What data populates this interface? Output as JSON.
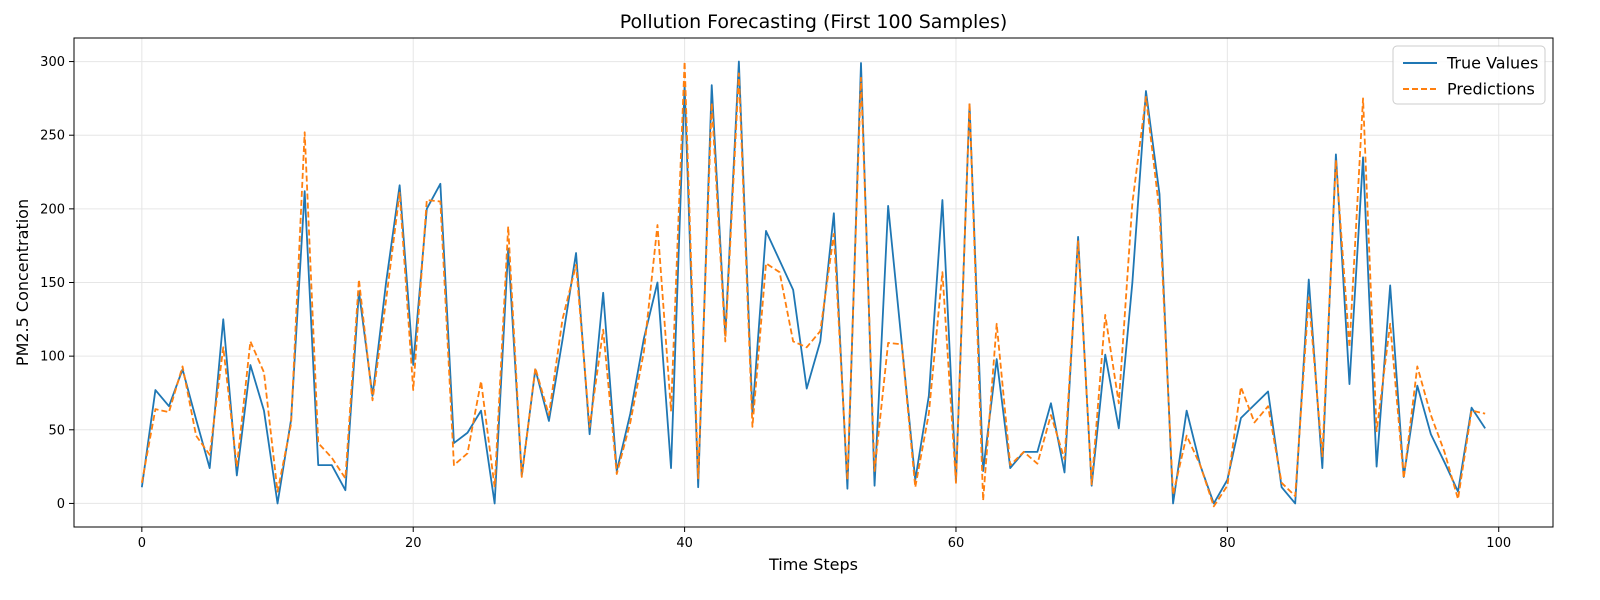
{
  "chart_data": {
    "type": "line",
    "title": "Pollution Forecasting (First 100 Samples)",
    "xlabel": "Time Steps",
    "ylabel": "PM2.5 Concentration",
    "xlim": [
      -5,
      104
    ],
    "ylim": [
      -16,
      316
    ],
    "xticks": [
      0,
      20,
      40,
      60,
      80,
      100
    ],
    "yticks": [
      0,
      50,
      100,
      150,
      200,
      250,
      300
    ],
    "grid": true,
    "legend_position": "top-right",
    "x": [
      0,
      1,
      2,
      3,
      4,
      5,
      6,
      7,
      8,
      9,
      10,
      11,
      12,
      13,
      14,
      15,
      16,
      17,
      18,
      19,
      20,
      21,
      22,
      23,
      24,
      25,
      26,
      27,
      28,
      29,
      30,
      31,
      32,
      33,
      34,
      35,
      36,
      37,
      38,
      39,
      40,
      41,
      42,
      43,
      44,
      45,
      46,
      47,
      48,
      49,
      50,
      51,
      52,
      53,
      54,
      55,
      56,
      57,
      58,
      59,
      60,
      61,
      62,
      63,
      64,
      65,
      66,
      67,
      68,
      69,
      70,
      71,
      72,
      73,
      74,
      75,
      76,
      77,
      78,
      79,
      80,
      81,
      82,
      83,
      84,
      85,
      86,
      87,
      88,
      89,
      90,
      91,
      92,
      93,
      94,
      95,
      96,
      97,
      98,
      99
    ],
    "series": [
      {
        "name": "True Values",
        "color": "#1f77b4",
        "style": "solid",
        "values": [
          11,
          77,
          66,
          91,
          57,
          24,
          125,
          19,
          94,
          63,
          0,
          57,
          212,
          26,
          26,
          9,
          144,
          73,
          150,
          216,
          94,
          200,
          217,
          41,
          48,
          63,
          0,
          173,
          19,
          91,
          56,
          111,
          170,
          47,
          143,
          22,
          61,
          112,
          150,
          24,
          284,
          11,
          284,
          114,
          300,
          61,
          185,
          165,
          145,
          78,
          110,
          197,
          10,
          299,
          12,
          202,
          109,
          16,
          73,
          206,
          15,
          271,
          22,
          98,
          24,
          35,
          35,
          68,
          21,
          181,
          12,
          101,
          51,
          150,
          280,
          210,
          0,
          63,
          26,
          0,
          16,
          58,
          67,
          76,
          11,
          0,
          152,
          24,
          237,
          81,
          235,
          25,
          148,
          18,
          80,
          47,
          28,
          8,
          65,
          51
        ]
      },
      {
        "name": "Predictions",
        "color": "#ff7f0e",
        "style": "dashed",
        "values": [
          14,
          64,
          62,
          93,
          46,
          33,
          106,
          25,
          110,
          89,
          8,
          54,
          252,
          41,
          31,
          17,
          152,
          70,
          138,
          211,
          77,
          206,
          205,
          26,
          34,
          83,
          11,
          188,
          18,
          92,
          60,
          125,
          162,
          52,
          118,
          20,
          55,
          103,
          189,
          63,
          300,
          17,
          272,
          110,
          292,
          52,
          163,
          157,
          110,
          106,
          117,
          183,
          16,
          289,
          22,
          109,
          108,
          11,
          61,
          157,
          14,
          272,
          2,
          122,
          26,
          35,
          27,
          60,
          30,
          178,
          13,
          128,
          68,
          204,
          276,
          198,
          6,
          46,
          26,
          -2,
          12,
          79,
          55,
          66,
          14,
          5,
          140,
          32,
          233,
          106,
          275,
          49,
          122,
          17,
          93,
          60,
          35,
          3,
          63,
          61
        ]
      }
    ]
  }
}
